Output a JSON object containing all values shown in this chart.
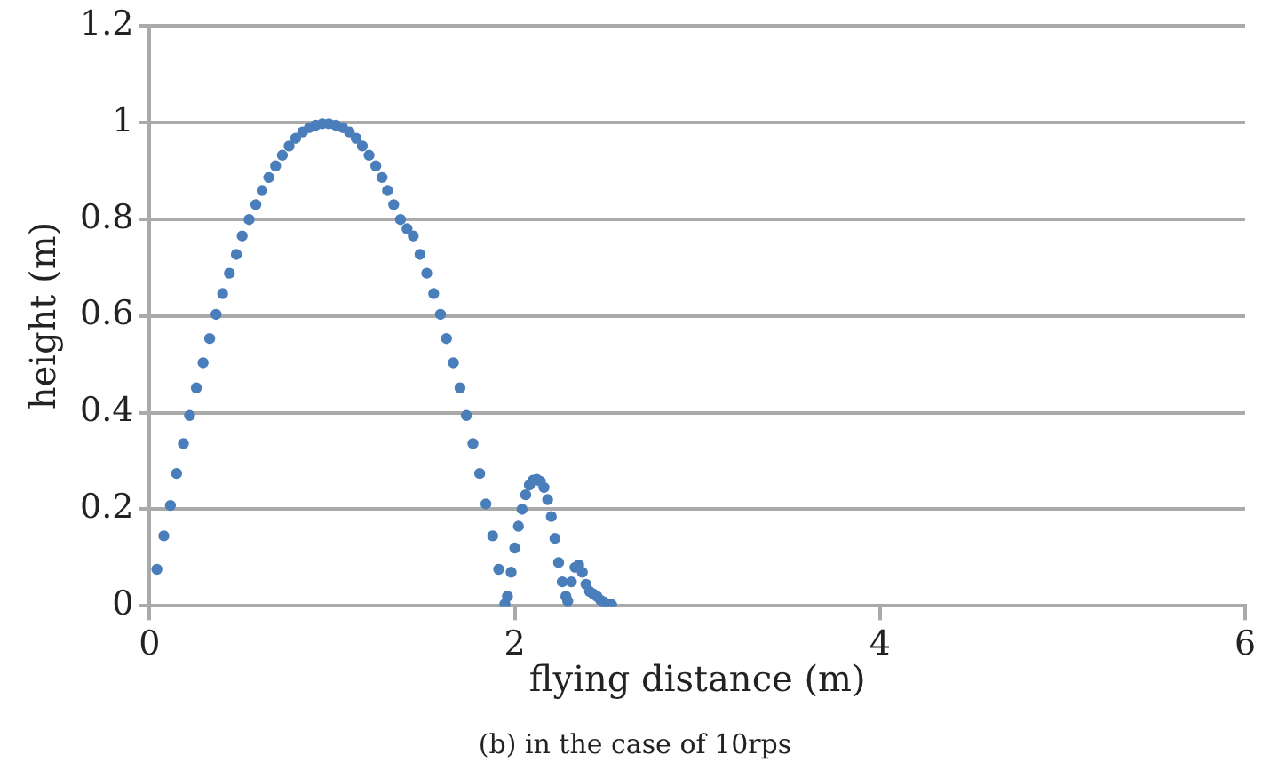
{
  "chart_data": {
    "type": "scatter",
    "xlabel": "flying distance (m)",
    "ylabel": "height (m)",
    "annotations": [
      "(b) in the case of 10rps"
    ],
    "xlim": [
      0,
      6
    ],
    "xticks": [
      0,
      2,
      4,
      6
    ],
    "ylim": [
      0,
      1.2
    ],
    "yticks": [
      0,
      0.2,
      0.4,
      0.6,
      0.8,
      1,
      1.2
    ],
    "grid": "y",
    "marker": "circle",
    "legend": false,
    "series": [
      {
        "color": "#4a7ebb",
        "x": [
          0.04,
          0.078,
          0.114,
          0.148,
          0.185,
          0.219,
          0.256,
          0.293,
          0.329,
          0.364,
          0.4,
          0.437,
          0.475,
          0.507,
          0.545,
          0.582,
          0.616,
          0.653,
          0.69,
          0.727,
          0.764,
          0.8,
          0.838,
          0.875,
          0.909,
          0.946,
          0.982,
          1.02,
          1.057,
          1.094,
          1.131,
          1.165,
          1.202,
          1.239,
          1.273,
          1.303,
          1.337,
          1.374,
          1.41,
          1.444,
          1.481,
          1.518,
          1.556,
          1.593,
          1.626,
          1.664,
          1.7,
          1.735,
          1.771,
          1.808,
          1.842,
          1.879,
          1.912,
          1.946,
          1.96,
          1.98,
          2.0,
          2.02,
          2.04,
          2.06,
          2.08,
          2.1,
          2.12,
          2.14,
          2.16,
          2.18,
          2.2,
          2.22,
          2.24,
          2.26,
          2.28,
          2.29,
          2.31,
          2.33,
          2.35,
          2.37,
          2.39,
          2.41,
          2.43,
          2.45,
          2.47,
          2.49,
          2.51,
          2.53
        ],
        "values": [
          0.076,
          0.145,
          0.208,
          0.274,
          0.336,
          0.394,
          0.451,
          0.503,
          0.553,
          0.603,
          0.646,
          0.688,
          0.727,
          0.765,
          0.799,
          0.83,
          0.859,
          0.886,
          0.91,
          0.932,
          0.951,
          0.967,
          0.98,
          0.989,
          0.994,
          0.997,
          0.997,
          0.994,
          0.989,
          0.98,
          0.967,
          0.951,
          0.932,
          0.91,
          0.886,
          0.859,
          0.83,
          0.799,
          0.78,
          0.765,
          0.727,
          0.688,
          0.646,
          0.603,
          0.553,
          0.503,
          0.451,
          0.394,
          0.336,
          0.274,
          0.211,
          0.145,
          0.076,
          0.004,
          0.02,
          0.07,
          0.12,
          0.165,
          0.2,
          0.23,
          0.25,
          0.26,
          0.262,
          0.258,
          0.245,
          0.22,
          0.185,
          0.14,
          0.09,
          0.05,
          0.02,
          0.01,
          0.05,
          0.08,
          0.085,
          0.07,
          0.045,
          0.03,
          0.025,
          0.02,
          0.012,
          0.008,
          0.004,
          0.003
        ]
      }
    ]
  }
}
